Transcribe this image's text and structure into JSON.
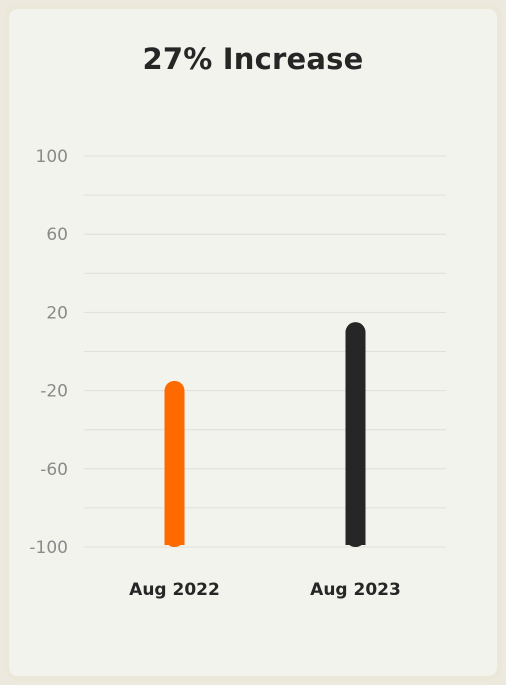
{
  "chart_data": {
    "type": "bar",
    "title": "27% Increase",
    "categories": [
      "Aug 2022",
      "Aug 2023"
    ],
    "values": [
      -15,
      15
    ],
    "colors": [
      "#ff6a00",
      "#262626"
    ],
    "baseline": -100,
    "ylim": [
      -100,
      100
    ],
    "yticks": [
      100,
      60,
      20,
      -20,
      -60,
      -100
    ],
    "grid_step": 20,
    "xlabel": "",
    "ylabel": "",
    "grid": true,
    "legend": "none"
  }
}
